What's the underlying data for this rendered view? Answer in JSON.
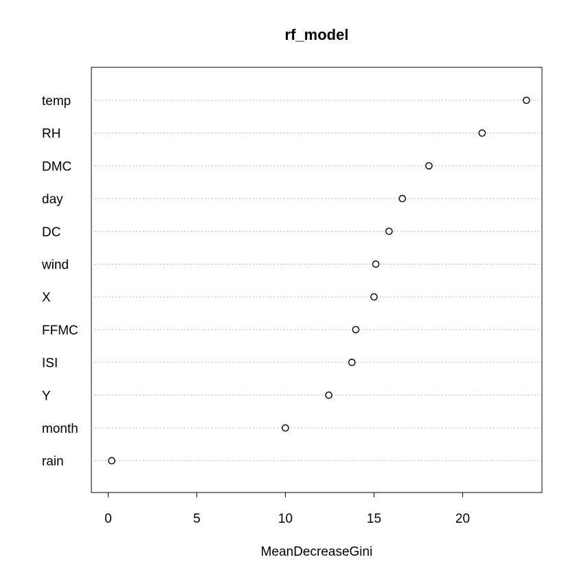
{
  "chart_data": {
    "type": "scatter",
    "title": "rf_model",
    "xlabel": "MeanDecreaseGini",
    "ylabel": "",
    "xlim": [
      -0.96,
      24.5
    ],
    "xticks": [
      0,
      5,
      10,
      15,
      20
    ],
    "grid": "horizontal dotted",
    "categories": [
      "temp",
      "RH",
      "DMC",
      "day",
      "DC",
      "wind",
      "X",
      "FFMC",
      "ISI",
      "Y",
      "month",
      "rain"
    ],
    "values": [
      23.6,
      21.1,
      18.1,
      16.6,
      15.85,
      15.1,
      15.0,
      13.97,
      13.75,
      12.45,
      10.0,
      0.2
    ]
  }
}
